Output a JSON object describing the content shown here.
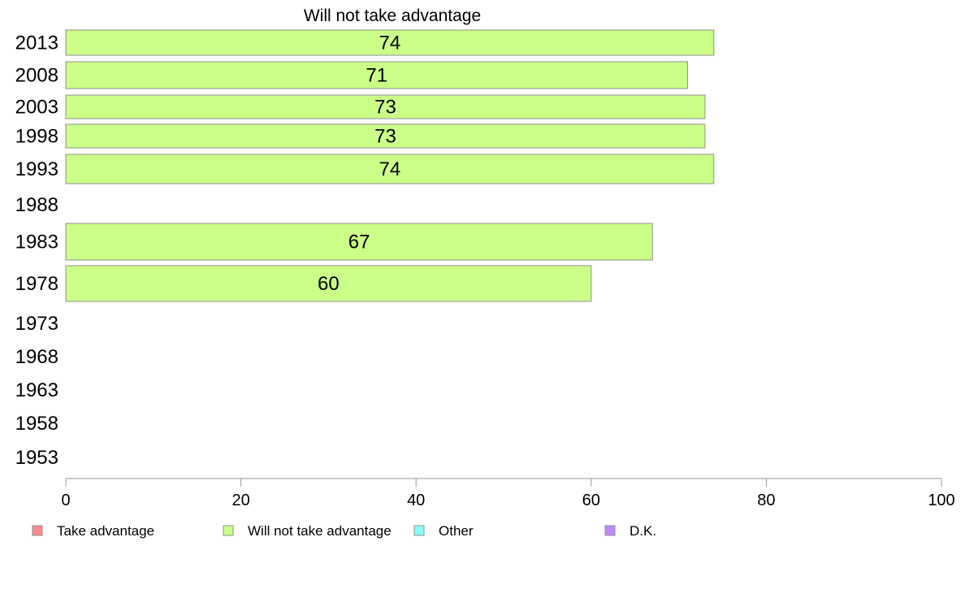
{
  "chart_data": {
    "type": "bar",
    "orientation": "horizontal",
    "title": "Will not take advantage",
    "xlabel": "",
    "ylabel": "",
    "xlim": [
      0,
      100
    ],
    "x_ticks": [
      0,
      20,
      40,
      60,
      80,
      100
    ],
    "categories": [
      "2013",
      "2008",
      "2003",
      "1998",
      "1993",
      "1988",
      "1983",
      "1978",
      "1973",
      "1968",
      "1963",
      "1958",
      "1953"
    ],
    "series": [
      {
        "name": "Will not take advantage",
        "color": "#ccff88",
        "values": [
          74,
          71,
          73,
          73,
          74,
          null,
          67,
          60,
          null,
          null,
          null,
          null,
          null
        ],
        "labels": [
          "74",
          "71",
          "73",
          "73",
          "74",
          "",
          "67",
          "60",
          "",
          "",
          "",
          "",
          ""
        ]
      }
    ],
    "grid": false,
    "legend_position": "bottom",
    "legend": [
      {
        "label": "Take advantage",
        "color": "#ff8888"
      },
      {
        "label": "Will not take advantage",
        "color": "#ccff88"
      },
      {
        "label": "Other",
        "color": "#88ffff"
      },
      {
        "label": "D.K.",
        "color": "#bb88ff"
      }
    ]
  }
}
